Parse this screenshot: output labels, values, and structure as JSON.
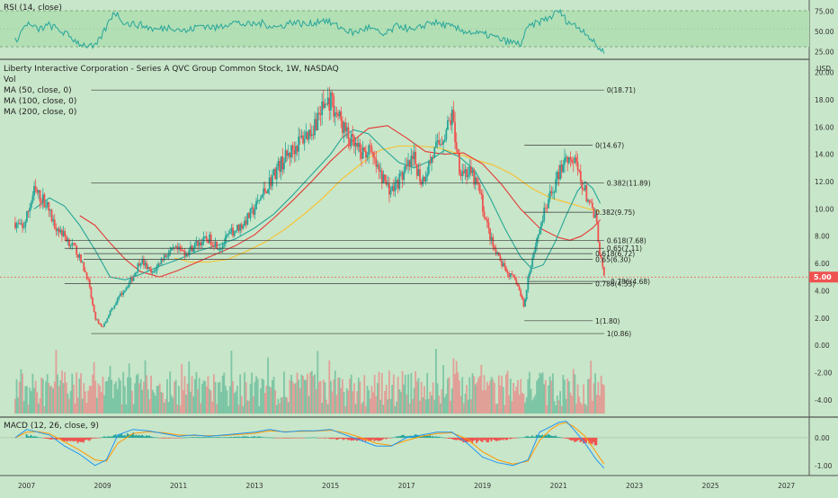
{
  "header": {
    "symbol_title": "Liberty Interactive Corporation - Series A QVC Group Common Stock, 1W, NASDAQ",
    "vol_label": "Vol",
    "ma50_label": "MA (50, close, 0)",
    "ma100_label": "MA (100, close, 0)",
    "ma200_label": "MA (200, close, 0)"
  },
  "rsi_panel": {
    "label": "RSI (14, close)",
    "ticks": [
      "75.00",
      "50.00",
      "25.00"
    ]
  },
  "macd_panel": {
    "label": "MACD (12, 26, close, 9)",
    "ticks": [
      "0.00",
      "-1.00"
    ]
  },
  "price_axis": {
    "unit": "USD",
    "ticks": [
      "20.00",
      "18.00",
      "16.00",
      "14.00",
      "12.00",
      "10.00",
      "8.00",
      "6.00",
      "4.00",
      "2.00",
      "0.00",
      "-2.00",
      "-4.00"
    ]
  },
  "last_price": "5.00",
  "x_axis_ticks": [
    "2007",
    "2009",
    "2011",
    "2013",
    "2015",
    "2017",
    "2019",
    "2021",
    "2023",
    "2025",
    "2027"
  ],
  "colors": {
    "background": "#c8e6c9",
    "candle_up": "#26a69a",
    "candle_down": "#ef5350",
    "ma50": "#26a69a",
    "ma100": "#e53935",
    "ma200": "#fbc02d",
    "rsi_line": "#26a69a",
    "macd_line": "#2196f3",
    "signal_line": "#ff9800",
    "price_tag": "#ef5350"
  },
  "chart_data": {
    "type": "candlestick",
    "title": "Liberty Interactive Corporation - Series A QVC Group Common Stock, 1W, NASDAQ",
    "timeframe": "1W",
    "exchange": "NASDAQ",
    "ylabel": "USD",
    "ylim": [
      -5,
      20.5
    ],
    "xlim": [
      2006.3,
      2027.6
    ],
    "grid": false,
    "price_series": {
      "x": [
        2006.7,
        2006.9,
        2007.2,
        2007.5,
        2007.7,
        2008.0,
        2008.3,
        2008.6,
        2008.8,
        2009.0,
        2009.2,
        2009.5,
        2009.8,
        2010.0,
        2010.3,
        2010.6,
        2010.9,
        2011.2,
        2011.5,
        2011.8,
        2012.1,
        2012.4,
        2012.7,
        2013.0,
        2013.3,
        2013.6,
        2013.9,
        2014.2,
        2014.5,
        2014.8,
        2015.0,
        2015.3,
        2015.5,
        2015.8,
        2016.0,
        2016.3,
        2016.6,
        2016.9,
        2017.2,
        2017.4,
        2017.7,
        2018.0,
        2018.2,
        2018.4,
        2018.7,
        2018.9,
        2019.1,
        2019.3,
        2019.6,
        2019.9,
        2020.1,
        2020.2,
        2020.4,
        2020.6,
        2020.8,
        2021.0,
        2021.2,
        2021.4,
        2021.6,
        2021.8,
        2022.0,
        2022.1,
        2022.2
      ],
      "close": [
        9.0,
        8.5,
        11.3,
        10.5,
        9.0,
        8.0,
        7.0,
        5.0,
        2.0,
        1.3,
        2.5,
        3.8,
        5.0,
        6.3,
        5.2,
        6.5,
        7.0,
        6.8,
        7.5,
        7.8,
        7.2,
        8.3,
        8.9,
        10.0,
        11.5,
        13.0,
        14.0,
        15.0,
        15.8,
        17.5,
        18.0,
        16.2,
        15.0,
        14.0,
        14.3,
        12.5,
        11.3,
        12.5,
        13.6,
        12.0,
        14.0,
        15.5,
        16.8,
        13.0,
        12.5,
        11.5,
        9.0,
        7.0,
        5.5,
        4.6,
        2.8,
        5.0,
        7.5,
        9.5,
        11.0,
        12.5,
        14.0,
        13.5,
        12.0,
        10.5,
        9.0,
        6.5,
        5.0
      ]
    },
    "moving_averages": [
      {
        "name": "MA (50, close, 0)",
        "x": [
          2007.2,
          2007.6,
          2008.0,
          2008.4,
          2008.8,
          2009.2,
          2009.6,
          2010.0,
          2010.5,
          2011.0,
          2011.5,
          2012.0,
          2012.5,
          2013.0,
          2013.5,
          2014.0,
          2014.5,
          2015.0,
          2015.3,
          2015.6,
          2016.0,
          2016.4,
          2016.8,
          2017.2,
          2017.6,
          2018.0,
          2018.4,
          2018.8,
          2019.2,
          2019.6,
          2020.0,
          2020.3,
          2020.6,
          2020.9,
          2021.2,
          2021.5,
          2021.7,
          2021.9,
          2022.1
        ],
        "values": [
          10.0,
          10.8,
          10.2,
          8.8,
          7.0,
          5.0,
          4.8,
          5.2,
          5.8,
          6.3,
          6.9,
          7.3,
          7.8,
          8.6,
          9.6,
          11.0,
          12.5,
          14.0,
          15.2,
          15.8,
          15.5,
          14.4,
          13.4,
          13.0,
          13.5,
          14.3,
          13.8,
          12.8,
          10.8,
          8.5,
          6.5,
          5.6,
          5.9,
          7.5,
          9.5,
          11.3,
          12.0,
          11.5,
          10.4
        ]
      },
      {
        "name": "MA (100, close, 0)",
        "x": [
          2008.4,
          2008.8,
          2009.2,
          2009.6,
          2010.0,
          2010.5,
          2011.0,
          2011.5,
          2012.0,
          2012.5,
          2013.0,
          2013.5,
          2014.0,
          2014.5,
          2015.0,
          2015.5,
          2016.0,
          2016.5,
          2017.0,
          2017.5,
          2018.0,
          2018.5,
          2019.0,
          2019.5,
          2020.0,
          2020.5,
          2021.0,
          2021.3,
          2021.6,
          2021.9,
          2022.1
        ],
        "values": [
          9.5,
          8.8,
          7.5,
          6.3,
          5.4,
          5.0,
          5.5,
          6.1,
          6.7,
          7.3,
          8.1,
          9.3,
          10.6,
          12.0,
          13.5,
          14.8,
          15.9,
          16.1,
          15.2,
          14.2,
          14.0,
          14.1,
          13.3,
          11.8,
          10.0,
          8.6,
          7.9,
          7.7,
          8.0,
          8.6,
          9.2
        ]
      },
      {
        "name": "MA (200, close, 0)",
        "x": [
          2010.9,
          2011.3,
          2011.8,
          2012.3,
          2012.8,
          2013.3,
          2013.8,
          2014.3,
          2014.8,
          2015.3,
          2015.8,
          2016.3,
          2016.8,
          2017.3,
          2017.8,
          2018.3,
          2018.8,
          2019.3,
          2019.8,
          2020.3,
          2020.8,
          2021.3,
          2021.8,
          2022.1
        ],
        "values": [
          6.4,
          6.1,
          6.1,
          6.3,
          6.9,
          7.6,
          8.5,
          9.6,
          10.8,
          12.2,
          13.3,
          14.3,
          14.6,
          14.6,
          14.5,
          14.1,
          13.6,
          13.2,
          12.5,
          11.5,
          10.8,
          10.4,
          10.0,
          9.8
        ]
      }
    ],
    "fibonacci_levels": [
      {
        "label": "0(18.71)",
        "value": 18.71
      },
      {
        "label": "0(14.67)",
        "value": 14.67
      },
      {
        "label": "0.382(11.89)",
        "value": 11.89
      },
      {
        "label": "0.382(9.75)",
        "value": 9.75
      },
      {
        "label": "0.618(7.68)",
        "value": 7.68
      },
      {
        "label": "0.65(7.11)",
        "value": 7.11
      },
      {
        "label": "0.618(6.72)",
        "value": 6.72
      },
      {
        "label": "0.65(6.30)",
        "value": 6.3
      },
      {
        "label": "0.786(4.68)",
        "value": 4.68
      },
      {
        "label": "0.786(4.53)",
        "value": 4.53
      },
      {
        "label": "1(1.80)",
        "value": 1.8
      },
      {
        "label": "1(0.86)",
        "value": 0.86
      }
    ],
    "rsi": {
      "name": "RSI (14, close)",
      "ylim": [
        20,
        80
      ],
      "x": [
        2006.7,
        2007.0,
        2007.3,
        2007.6,
        2008.0,
        2008.4,
        2008.8,
        2009.1,
        2009.3,
        2009.6,
        2010.0,
        2010.4,
        2010.8,
        2011.2,
        2011.6,
        2012.0,
        2012.4,
        2012.8,
        2013.2,
        2013.6,
        2014.0,
        2014.4,
        2014.8,
        2015.2,
        2015.6,
        2016.0,
        2016.4,
        2016.8,
        2017.2,
        2017.6,
        2018.0,
        2018.4,
        2018.8,
        2019.2,
        2019.6,
        2020.0,
        2020.2,
        2020.5,
        2020.8,
        2021.0,
        2021.2,
        2021.4,
        2021.7,
        2022.0,
        2022.2
      ],
      "values": [
        38,
        60,
        52,
        58,
        48,
        35,
        30,
        55,
        75,
        60,
        58,
        52,
        56,
        50,
        58,
        54,
        62,
        58,
        60,
        55,
        62,
        58,
        65,
        56,
        48,
        55,
        45,
        58,
        50,
        62,
        58,
        52,
        48,
        45,
        38,
        34,
        55,
        62,
        68,
        76,
        64,
        58,
        50,
        32,
        25
      ]
    },
    "macd": {
      "name": "MACD (12, 26, close, 9)",
      "ylim": [
        -1.3,
        0.55
      ],
      "macd_x": [
        2006.7,
        2007.0,
        2007.3,
        2007.6,
        2008.0,
        2008.4,
        2008.8,
        2009.1,
        2009.4,
        2009.8,
        2010.2,
        2010.6,
        2011.0,
        2011.4,
        2011.8,
        2012.2,
        2012.6,
        2013.0,
        2013.4,
        2013.8,
        2014.2,
        2014.6,
        2015.0,
        2015.4,
        2015.8,
        2016.2,
        2016.6,
        2017.0,
        2017.4,
        2017.8,
        2018.2,
        2018.6,
        2019.0,
        2019.4,
        2019.8,
        2020.2,
        2020.5,
        2020.8,
        2021.0,
        2021.2,
        2021.4,
        2021.7,
        2022.0,
        2022.2
      ],
      "macd_values": [
        0.0,
        0.3,
        0.2,
        0.1,
        -0.3,
        -0.6,
        -1.0,
        -0.8,
        0.1,
        0.3,
        0.25,
        0.15,
        0.05,
        0.1,
        0.05,
        0.1,
        0.15,
        0.2,
        0.3,
        0.2,
        0.25,
        0.25,
        0.3,
        0.1,
        -0.1,
        -0.3,
        -0.3,
        0.0,
        0.1,
        0.2,
        0.2,
        -0.2,
        -0.7,
        -0.9,
        -1.0,
        -0.8,
        0.2,
        0.4,
        0.55,
        0.6,
        0.3,
        -0.2,
        -0.8,
        -1.1
      ],
      "signal_values": [
        0.0,
        0.2,
        0.22,
        0.15,
        -0.15,
        -0.45,
        -0.8,
        -0.85,
        -0.2,
        0.15,
        0.22,
        0.18,
        0.1,
        0.08,
        0.07,
        0.08,
        0.12,
        0.16,
        0.25,
        0.22,
        0.23,
        0.24,
        0.27,
        0.18,
        0.0,
        -0.2,
        -0.28,
        -0.1,
        0.05,
        0.15,
        0.18,
        -0.05,
        -0.5,
        -0.8,
        -0.95,
        -0.85,
        -0.1,
        0.3,
        0.48,
        0.55,
        0.4,
        0.05,
        -0.55,
        -0.95
      ],
      "hist_x": [
        2007.0,
        2007.6,
        2008.4,
        2009.1,
        2009.8,
        2010.6,
        2011.4,
        2012.2,
        2013.0,
        2013.8,
        2014.6,
        2015.4,
        2016.2,
        2017.0,
        2017.8,
        2018.6,
        2019.4,
        2020.2,
        2020.8,
        2021.4,
        2022.0
      ],
      "hist_values": [
        0.1,
        -0.05,
        -0.15,
        0.05,
        0.15,
        -0.03,
        0.02,
        0.02,
        0.04,
        -0.02,
        0.01,
        -0.08,
        -0.1,
        0.1,
        0.05,
        -0.15,
        -0.1,
        0.05,
        0.1,
        -0.1,
        -0.25
      ]
    }
  }
}
